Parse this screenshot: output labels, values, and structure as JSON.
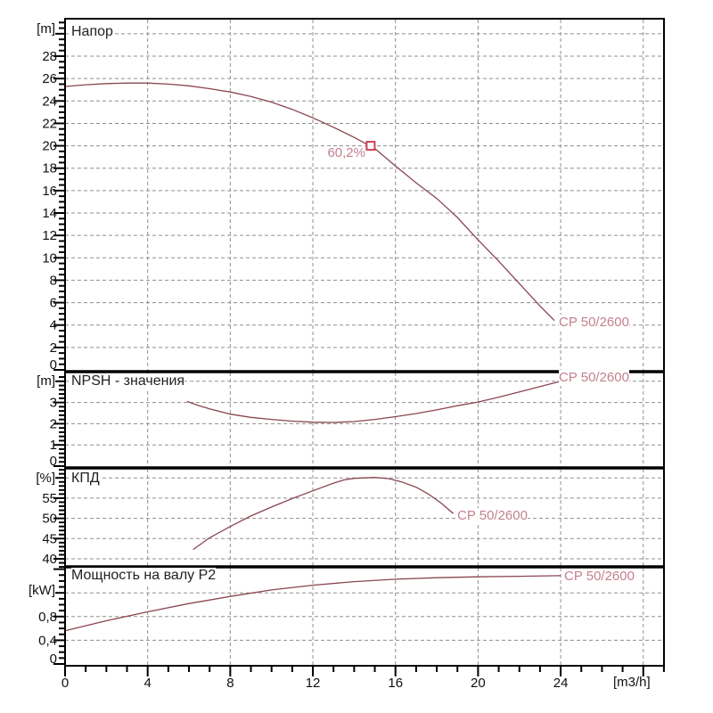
{
  "pump_model": "CP 50/2600",
  "colors": {
    "curve": "#8a4550",
    "curve_label": "#c2808d",
    "operating_marker": "#cc4257",
    "grid": "#8f8f8f",
    "axis": "#000000",
    "text": "#111111"
  },
  "x_axis": {
    "unit_label": "[m3/h]",
    "tick_values": [
      0,
      4,
      8,
      12,
      16,
      20,
      24
    ],
    "tick_labels": [
      "0",
      "4",
      "8",
      "12",
      "16",
      "20",
      "24"
    ],
    "grid_values": [
      4,
      8,
      12,
      16,
      20,
      24,
      28
    ],
    "minor_step": 1,
    "major_step": 4,
    "xlim": [
      0,
      29
    ]
  },
  "operating_point": {
    "q": 14.8,
    "head": 20.0,
    "efficiency_label": "60,2%"
  },
  "chart_data": [
    {
      "type": "line",
      "title": "Напор",
      "ylabel": "[m]",
      "curve_label": "CP 50/2600",
      "ylim": [
        0,
        31.3
      ],
      "tick_values": [
        28,
        26,
        24,
        22,
        20,
        18,
        16,
        14,
        12,
        10,
        8,
        6,
        4,
        2,
        0
      ],
      "tick_labels": [
        "28",
        "26",
        "24",
        "22",
        "20",
        "18",
        "16",
        "14",
        "12",
        "10",
        "8",
        "6",
        "4",
        "2",
        "0"
      ],
      "grid_values": [
        2,
        4,
        6,
        8,
        10,
        12,
        14,
        16,
        18,
        20,
        22,
        24,
        26,
        28,
        30
      ],
      "minor_step": 0.5,
      "major_step": 2,
      "series": [
        {
          "name": "CP 50/2600",
          "points": [
            [
              0,
              25.3
            ],
            [
              1,
              25.45
            ],
            [
              2,
              25.55
            ],
            [
              3,
              25.6
            ],
            [
              4,
              25.6
            ],
            [
              5,
              25.5
            ],
            [
              6,
              25.35
            ],
            [
              7,
              25.1
            ],
            [
              8,
              24.8
            ],
            [
              9,
              24.4
            ],
            [
              10,
              23.9
            ],
            [
              11,
              23.25
            ],
            [
              12,
              22.5
            ],
            [
              13,
              21.65
            ],
            [
              14,
              20.75
            ],
            [
              15,
              19.75
            ],
            [
              16,
              18.2
            ],
            [
              17,
              16.7
            ],
            [
              18,
              15.3
            ],
            [
              19,
              13.6
            ],
            [
              20,
              11.6
            ],
            [
              21,
              9.7
            ],
            [
              22,
              7.7
            ],
            [
              23,
              5.7
            ],
            [
              23.7,
              4.4
            ]
          ]
        }
      ]
    },
    {
      "type": "line",
      "title": "NPSH - значения",
      "ylabel": "[m]",
      "curve_label": "CP 50/2600",
      "ylim": [
        0,
        4.4
      ],
      "tick_values": [
        3,
        2,
        1,
        0
      ],
      "tick_labels": [
        "3",
        "2",
        "1",
        "0"
      ],
      "grid_values": [
        1,
        2,
        3,
        4
      ],
      "minor_step": 0.2,
      "major_step": 1,
      "series": [
        {
          "name": "CP 50/2600",
          "points": [
            [
              5.9,
              3.05
            ],
            [
              6.5,
              2.85
            ],
            [
              7,
              2.7
            ],
            [
              8,
              2.45
            ],
            [
              9,
              2.3
            ],
            [
              10,
              2.2
            ],
            [
              11,
              2.12
            ],
            [
              12,
              2.07
            ],
            [
              13,
              2.06
            ],
            [
              14,
              2.1
            ],
            [
              15,
              2.2
            ],
            [
              16,
              2.33
            ],
            [
              17,
              2.48
            ],
            [
              18,
              2.65
            ],
            [
              19,
              2.85
            ],
            [
              20,
              3.02
            ],
            [
              21,
              3.25
            ],
            [
              22,
              3.5
            ],
            [
              23,
              3.75
            ],
            [
              24,
              4.0
            ]
          ]
        }
      ]
    },
    {
      "type": "line",
      "title": "КПД",
      "ylabel": "[%]",
      "curve_label": "CP 50/2600",
      "ylim": [
        38,
        62.4
      ],
      "tick_values": [
        55,
        50,
        45,
        40
      ],
      "tick_labels": [
        "55",
        "50",
        "45",
        "40"
      ],
      "grid_values": [
        40,
        45,
        50,
        55,
        60
      ],
      "minor_step": 1,
      "major_step": 5,
      "series": [
        {
          "name": "CP 50/2600",
          "points": [
            [
              6.2,
              42.3
            ],
            [
              7,
              45.2
            ],
            [
              8,
              48.0
            ],
            [
              9,
              50.6
            ],
            [
              10,
              52.8
            ],
            [
              11,
              54.9
            ],
            [
              12,
              56.8
            ],
            [
              13,
              58.7
            ],
            [
              13.5,
              59.5
            ],
            [
              14,
              59.9
            ],
            [
              15,
              60.1
            ],
            [
              15.7,
              59.8
            ],
            [
              16.3,
              59.0
            ],
            [
              17,
              57.7
            ],
            [
              17.6,
              56.0
            ],
            [
              18.2,
              53.8
            ],
            [
              18.8,
              51.2
            ]
          ]
        }
      ]
    },
    {
      "type": "line",
      "title": "Мощность на валу P2",
      "ylabel": "[kW]",
      "curve_label": "CP 50/2600",
      "ylim": [
        0,
        1.63
      ],
      "tick_values": [
        0.8,
        0.4,
        0
      ],
      "tick_labels": [
        "0,8",
        "0,4",
        "0"
      ],
      "grid_values": [
        0.4,
        0.8,
        1.2
      ],
      "minor_step": 0.1,
      "major_step": 0.4,
      "series": [
        {
          "name": "CP 50/2600",
          "points": [
            [
              0,
              0.56
            ],
            [
              2,
              0.73
            ],
            [
              4,
              0.88
            ],
            [
              6,
              1.02
            ],
            [
              8,
              1.14
            ],
            [
              10,
              1.25
            ],
            [
              12,
              1.33
            ],
            [
              14,
              1.39
            ],
            [
              16,
              1.43
            ],
            [
              18,
              1.455
            ],
            [
              20,
              1.47
            ],
            [
              22,
              1.48
            ],
            [
              24,
              1.49
            ]
          ]
        }
      ]
    }
  ]
}
